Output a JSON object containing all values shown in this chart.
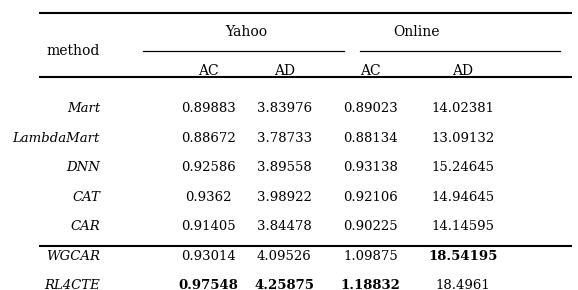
{
  "col_headers_top": [
    "",
    "Yahoo",
    "",
    "Online",
    ""
  ],
  "col_headers_mid": [
    "method",
    "AC",
    "AD",
    "AC",
    "AD"
  ],
  "rows": [
    {
      "method": "Mart",
      "y_ac": "0.89883",
      "y_ad": "3.83976",
      "o_ac": "0.89023",
      "o_ad": "14.02381",
      "bold": []
    },
    {
      "method": "LambdaMart",
      "y_ac": "0.88672",
      "y_ad": "3.78733",
      "o_ac": "0.88134",
      "o_ad": "13.09132",
      "bold": []
    },
    {
      "method": "DNN",
      "y_ac": "0.92586",
      "y_ad": "3.89558",
      "o_ac": "0.93138",
      "o_ad": "15.24645",
      "bold": []
    },
    {
      "method": "CAT",
      "y_ac": "0.9362",
      "y_ad": "3.98922",
      "o_ac": "0.92106",
      "o_ad": "14.94645",
      "bold": []
    },
    {
      "method": "CAR",
      "y_ac": "0.91405",
      "y_ad": "3.84478",
      "o_ac": "0.90225",
      "o_ad": "14.14595",
      "bold": []
    },
    {
      "method": "WGCAR",
      "y_ac": "0.93014",
      "y_ad": "4.09526",
      "o_ac": "1.09875",
      "o_ad": "18.54195",
      "bold": [
        "o_ad"
      ]
    },
    {
      "method": "RL4CTE",
      "y_ac": "0.97548",
      "y_ad": "4.25875",
      "o_ac": "1.18832",
      "o_ad": "18.4961",
      "bold": [
        "y_ac",
        "y_ad",
        "o_ac"
      ]
    }
  ],
  "figsize": [
    5.78,
    2.9
  ],
  "dpi": 100,
  "background": "#ffffff",
  "font_size": 9.5,
  "header_font_size": 10
}
